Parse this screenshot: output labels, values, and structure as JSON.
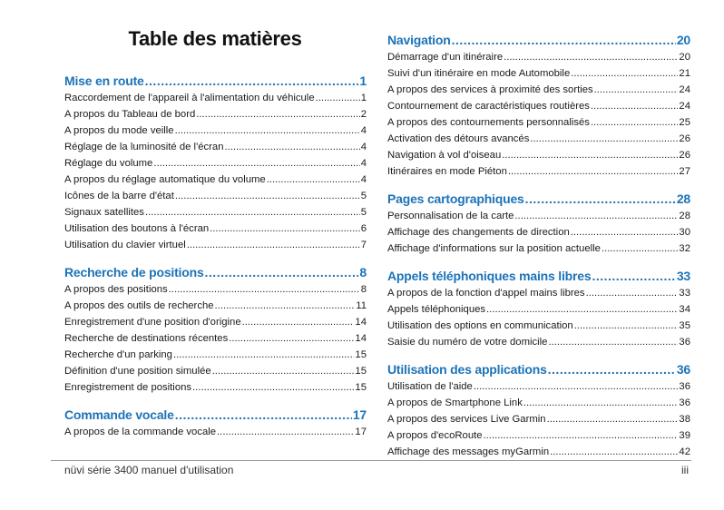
{
  "title": "Table des matières",
  "footer": {
    "manual": "nüvi série 3400 manuel d'utilisation",
    "page": "iii"
  },
  "colors": {
    "heading": "#1c73b8",
    "text": "#1a1a1a"
  },
  "left_sections": [
    {
      "title": "Mise en route",
      "page": "1",
      "entries": [
        {
          "label": "Raccordement de l'appareil à l'alimentation du véhicule",
          "page": "1"
        },
        {
          "label": "A propos du Tableau de bord",
          "page": "2"
        },
        {
          "label": "A propos du mode veille",
          "page": "4"
        },
        {
          "label": "Réglage de la luminosité de l'écran",
          "page": "4"
        },
        {
          "label": "Réglage du volume",
          "page": "4"
        },
        {
          "label": "A propos du réglage automatique du volume",
          "page": "4"
        },
        {
          "label": "Icônes de la barre d'état",
          "page": "5"
        },
        {
          "label": "Signaux satellites",
          "page": "5"
        },
        {
          "label": "Utilisation des boutons à l'écran",
          "page": "6"
        },
        {
          "label": "Utilisation du clavier virtuel",
          "page": "7"
        }
      ]
    },
    {
      "title": "Recherche de positions",
      "page": "8",
      "entries": [
        {
          "label": "A propos des positions",
          "page": "8"
        },
        {
          "label": "A propos des outils de recherche",
          "page": "11"
        },
        {
          "label": "Enregistrement d'une position d'origine",
          "page": "14"
        },
        {
          "label": "Recherche de destinations récentes",
          "page": "14"
        },
        {
          "label": "Recherche d'un parking",
          "page": "15"
        },
        {
          "label": "Définition d'une position simulée",
          "page": "15"
        },
        {
          "label": "Enregistrement de positions",
          "page": "15"
        }
      ]
    },
    {
      "title": "Commande vocale",
      "page": "17",
      "entries": [
        {
          "label": "A propos de la commande vocale",
          "page": "17"
        }
      ]
    }
  ],
  "right_sections": [
    {
      "title": "Navigation",
      "page": "20",
      "entries": [
        {
          "label": "Démarrage d'un itinéraire",
          "page": "20"
        },
        {
          "label": "Suivi d'un itinéraire en mode Automobile",
          "page": "21"
        },
        {
          "label": "A propos des services à proximité des sorties",
          "page": "24"
        },
        {
          "label": "Contournement de caractéristiques routières",
          "page": "24"
        },
        {
          "label": "A propos des contournements personnalisés",
          "page": "25"
        },
        {
          "label": "Activation des détours avancés",
          "page": "26"
        },
        {
          "label": "Navigation à vol d'oiseau",
          "page": "26"
        },
        {
          "label": "Itinéraires en mode Piéton",
          "page": "27"
        }
      ]
    },
    {
      "title": "Pages cartographiques",
      "page": "28",
      "entries": [
        {
          "label": "Personnalisation de la carte",
          "page": "28"
        },
        {
          "label": "Affichage des changements de direction",
          "page": "30"
        },
        {
          "label": "Affichage d'informations sur la position actuelle",
          "page": "32"
        }
      ]
    },
    {
      "title": "Appels téléphoniques mains libres",
      "page": "33",
      "entries": [
        {
          "label": "A propos de la fonction d'appel mains libres",
          "page": "33"
        },
        {
          "label": "Appels téléphoniques",
          "page": "34"
        },
        {
          "label": "Utilisation des options en communication",
          "page": "35"
        },
        {
          "label": "Saisie du numéro de votre domicile",
          "page": "36"
        }
      ]
    },
    {
      "title": "Utilisation des applications",
      "page": "36",
      "entries": [
        {
          "label": "Utilisation de l'aide",
          "page": "36"
        },
        {
          "label": "A propos de Smartphone Link",
          "page": "36"
        },
        {
          "label": "A propos des services Live Garmin",
          "page": "38"
        },
        {
          "label": "A propos d'ecoRoute",
          "page": "39"
        },
        {
          "label": "Affichage des messages myGarmin",
          "page": "42"
        }
      ]
    }
  ]
}
